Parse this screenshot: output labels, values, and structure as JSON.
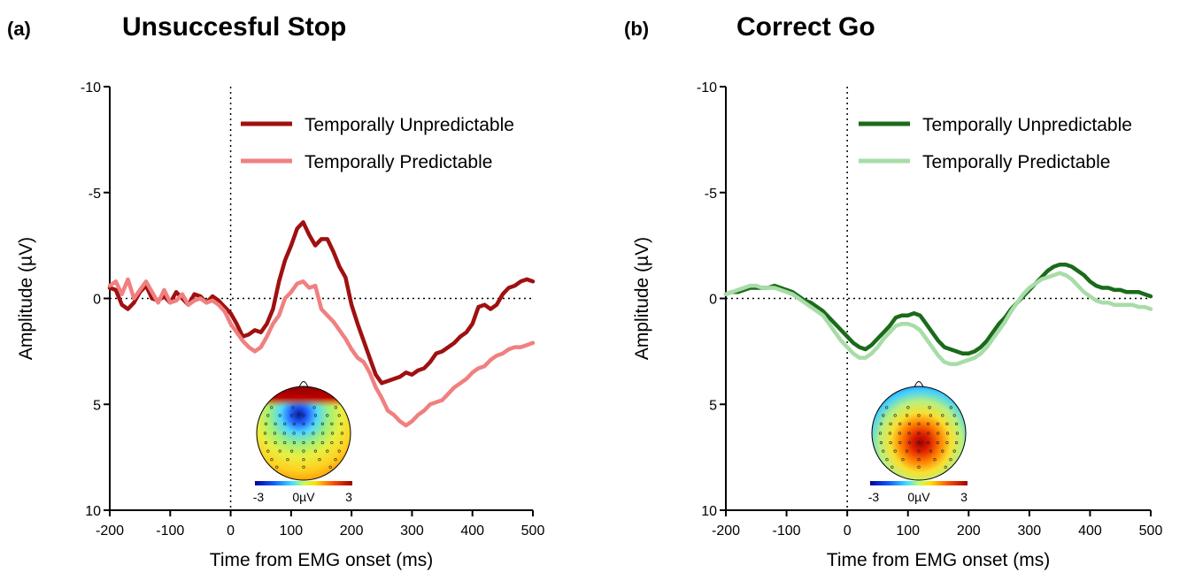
{
  "chart_data": [
    {
      "panel": "(a)",
      "type": "line",
      "title": "Unsuccesful Stop",
      "xlabel": "Time from EMG onset (ms)",
      "ylabel": "Amplitude (µV)",
      "xlim": [
        -200,
        500
      ],
      "ylim": [
        -10,
        10
      ],
      "y_inverted": true,
      "xticks": [
        "-200",
        "-100",
        "0",
        "100",
        "200",
        "300",
        "400",
        "500"
      ],
      "yticks": [
        "-10",
        "-5",
        "0",
        "5",
        "10"
      ],
      "legend_position": "top-right",
      "series": [
        {
          "name": "Temporally Unpredictable",
          "color": "#a01010",
          "x": [
            -200,
            -190,
            -180,
            -170,
            -160,
            -150,
            -140,
            -130,
            -120,
            -110,
            -100,
            -90,
            -80,
            -70,
            -60,
            -50,
            -40,
            -30,
            -20,
            -10,
            0,
            10,
            20,
            30,
            40,
            50,
            60,
            70,
            80,
            90,
            100,
            110,
            120,
            130,
            140,
            150,
            160,
            170,
            180,
            190,
            200,
            210,
            220,
            230,
            240,
            250,
            260,
            270,
            280,
            290,
            300,
            310,
            320,
            330,
            340,
            350,
            360,
            370,
            380,
            390,
            400,
            410,
            420,
            430,
            440,
            450,
            460,
            470,
            480,
            490,
            500
          ],
          "y": [
            -0.5,
            -0.4,
            0.3,
            0.5,
            0.2,
            -0.3,
            -0.6,
            0.0,
            0.1,
            -0.1,
            0.2,
            -0.3,
            0.0,
            0.3,
            -0.2,
            -0.1,
            0.2,
            -0.1,
            0.1,
            0.4,
            0.7,
            1.2,
            1.8,
            1.7,
            1.5,
            1.6,
            1.2,
            0.5,
            -0.8,
            -1.8,
            -2.5,
            -3.3,
            -3.6,
            -3.0,
            -2.5,
            -2.8,
            -2.8,
            -2.2,
            -1.5,
            -1.0,
            0.3,
            1.2,
            2.0,
            2.8,
            3.6,
            4.0,
            3.9,
            3.8,
            3.7,
            3.5,
            3.6,
            3.4,
            3.3,
            3.0,
            2.6,
            2.5,
            2.3,
            2.1,
            1.8,
            1.6,
            1.2,
            0.4,
            0.3,
            0.5,
            0.3,
            -0.2,
            -0.5,
            -0.6,
            -0.8,
            -0.9,
            -0.8
          ]
        },
        {
          "name": "Temporally Predictable",
          "color": "#f08080",
          "x": [
            -200,
            -190,
            -180,
            -170,
            -160,
            -150,
            -140,
            -130,
            -120,
            -110,
            -100,
            -90,
            -80,
            -70,
            -60,
            -50,
            -40,
            -30,
            -20,
            -10,
            0,
            10,
            20,
            30,
            40,
            50,
            60,
            70,
            80,
            90,
            100,
            110,
            120,
            130,
            140,
            150,
            160,
            170,
            180,
            190,
            200,
            210,
            220,
            230,
            240,
            250,
            260,
            270,
            280,
            290,
            300,
            310,
            320,
            330,
            340,
            350,
            360,
            370,
            380,
            390,
            400,
            410,
            420,
            430,
            440,
            450,
            460,
            470,
            480,
            490,
            500
          ],
          "y": [
            -0.6,
            -0.8,
            -0.2,
            -0.9,
            0.0,
            -0.4,
            -0.8,
            -0.3,
            0.2,
            -0.4,
            0.2,
            0.1,
            -0.2,
            0.3,
            0.1,
            0.0,
            0.2,
            0.1,
            0.3,
            0.6,
            1.2,
            1.6,
            2.0,
            2.3,
            2.5,
            2.3,
            1.8,
            1.2,
            0.8,
            0.0,
            -0.3,
            -0.7,
            -0.8,
            -0.5,
            -0.6,
            0.5,
            0.8,
            1.1,
            1.5,
            1.9,
            2.4,
            2.8,
            3.0,
            3.5,
            4.2,
            4.7,
            5.3,
            5.5,
            5.8,
            6.0,
            5.8,
            5.5,
            5.3,
            5.0,
            4.9,
            4.8,
            4.5,
            4.2,
            4.0,
            3.8,
            3.5,
            3.3,
            3.2,
            2.9,
            2.7,
            2.6,
            2.4,
            2.3,
            2.3,
            2.2,
            2.1
          ]
        }
      ],
      "colorbar": {
        "min_label": "-3",
        "mid_label": "0µV",
        "max_label": "3"
      }
    },
    {
      "panel": "(b)",
      "type": "line",
      "title": "Correct Go",
      "xlabel": "Time from EMG onset (ms)",
      "ylabel": "Amplitude (µV)",
      "xlim": [
        -200,
        500
      ],
      "ylim": [
        -10,
        10
      ],
      "y_inverted": true,
      "xticks": [
        "-200",
        "-100",
        "0",
        "100",
        "200",
        "300",
        "400",
        "500"
      ],
      "yticks": [
        "-10",
        "-5",
        "0",
        "5",
        "10"
      ],
      "legend_position": "top-right",
      "series": [
        {
          "name": "Temporally Unpredictable",
          "color": "#1a6b1a",
          "x": [
            -200,
            -190,
            -180,
            -170,
            -160,
            -150,
            -140,
            -130,
            -120,
            -110,
            -100,
            -90,
            -80,
            -70,
            -60,
            -50,
            -40,
            -30,
            -20,
            -10,
            0,
            10,
            20,
            30,
            40,
            50,
            60,
            70,
            80,
            90,
            100,
            110,
            120,
            130,
            140,
            150,
            160,
            170,
            180,
            190,
            200,
            210,
            220,
            230,
            240,
            250,
            260,
            270,
            280,
            290,
            300,
            310,
            320,
            330,
            340,
            350,
            360,
            370,
            380,
            390,
            400,
            410,
            420,
            430,
            440,
            450,
            460,
            470,
            480,
            490,
            500
          ],
          "y": [
            -0.2,
            -0.3,
            -0.3,
            -0.4,
            -0.5,
            -0.5,
            -0.5,
            -0.5,
            -0.6,
            -0.5,
            -0.4,
            -0.3,
            -0.1,
            0.1,
            0.2,
            0.4,
            0.6,
            0.9,
            1.2,
            1.5,
            1.8,
            2.1,
            2.3,
            2.4,
            2.2,
            1.9,
            1.6,
            1.3,
            0.9,
            0.8,
            0.8,
            0.7,
            0.8,
            1.2,
            1.6,
            2.0,
            2.3,
            2.4,
            2.5,
            2.6,
            2.6,
            2.5,
            2.3,
            2.0,
            1.6,
            1.2,
            0.9,
            0.5,
            0.2,
            -0.1,
            -0.4,
            -0.7,
            -1.0,
            -1.3,
            -1.5,
            -1.6,
            -1.6,
            -1.5,
            -1.3,
            -1.1,
            -0.8,
            -0.6,
            -0.5,
            -0.5,
            -0.4,
            -0.4,
            -0.3,
            -0.3,
            -0.3,
            -0.2,
            -0.1
          ]
        },
        {
          "name": "Temporally Predictable",
          "color": "#a8dca8",
          "x": [
            -200,
            -190,
            -180,
            -170,
            -160,
            -150,
            -140,
            -130,
            -120,
            -110,
            -100,
            -90,
            -80,
            -70,
            -60,
            -50,
            -40,
            -30,
            -20,
            -10,
            0,
            10,
            20,
            30,
            40,
            50,
            60,
            70,
            80,
            90,
            100,
            110,
            120,
            130,
            140,
            150,
            160,
            170,
            180,
            190,
            200,
            210,
            220,
            230,
            240,
            250,
            260,
            270,
            280,
            290,
            300,
            310,
            320,
            330,
            340,
            350,
            360,
            370,
            380,
            390,
            400,
            410,
            420,
            430,
            440,
            450,
            460,
            470,
            480,
            490,
            500
          ],
          "y": [
            -0.2,
            -0.3,
            -0.4,
            -0.5,
            -0.6,
            -0.6,
            -0.5,
            -0.5,
            -0.5,
            -0.4,
            -0.3,
            -0.2,
            0.0,
            0.2,
            0.4,
            0.6,
            0.8,
            1.2,
            1.6,
            2.0,
            2.3,
            2.6,
            2.8,
            2.8,
            2.6,
            2.3,
            1.9,
            1.6,
            1.3,
            1.2,
            1.2,
            1.3,
            1.5,
            1.9,
            2.3,
            2.7,
            3.0,
            3.1,
            3.1,
            3.0,
            2.9,
            2.8,
            2.6,
            2.3,
            1.9,
            1.5,
            1.1,
            0.6,
            0.2,
            -0.2,
            -0.5,
            -0.7,
            -0.9,
            -1.0,
            -1.1,
            -1.2,
            -1.1,
            -0.9,
            -0.6,
            -0.3,
            -0.1,
            0.1,
            0.2,
            0.2,
            0.3,
            0.3,
            0.3,
            0.3,
            0.4,
            0.4,
            0.5
          ]
        }
      ],
      "colorbar": {
        "min_label": "-3",
        "mid_label": "0µV",
        "max_label": "3"
      }
    }
  ]
}
